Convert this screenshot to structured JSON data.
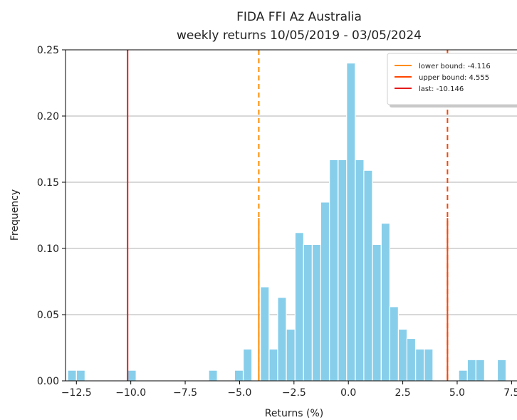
{
  "chart_data": {
    "type": "bar",
    "title": "FIDA FFI Az Australia",
    "subtitle": "weekly returns 10/05/2019 - 03/05/2024",
    "xlabel": "Returns (%)",
    "ylabel": "Frequency",
    "xlim": [
      -13.0,
      7.75
    ],
    "ylim": [
      0.0,
      0.25
    ],
    "xticks": [
      -12.5,
      -10.0,
      -7.5,
      -5.0,
      -2.5,
      0.0,
      2.5,
      5.0,
      7.5
    ],
    "xtick_labels": [
      "−12.5",
      "−10.0",
      "−7.5",
      "−5.0",
      "−2.5",
      "0.0",
      "2.5",
      "5.0",
      "7.5"
    ],
    "yticks": [
      0.0,
      0.05,
      0.1,
      0.15,
      0.2,
      0.25
    ],
    "ytick_labels": [
      "0.00",
      "0.05",
      "0.10",
      "0.15",
      "0.20",
      "0.25"
    ],
    "grid": "horizontal",
    "legend_position": "top-right",
    "bar_color": "#87ceeb",
    "bin_width": 0.396,
    "bins": [
      {
        "x": -12.5,
        "value": 0.008
      },
      {
        "x": -12.9,
        "value": 0.008
      },
      {
        "x": -10.15,
        "value": 0.008
      },
      {
        "x": -6.42,
        "value": 0.008
      },
      {
        "x": -5.23,
        "value": 0.008
      },
      {
        "x": -4.83,
        "value": 0.024
      },
      {
        "x": -4.04,
        "value": 0.071
      },
      {
        "x": -3.64,
        "value": 0.024
      },
      {
        "x": -3.25,
        "value": 0.063
      },
      {
        "x": -2.85,
        "value": 0.039
      },
      {
        "x": -2.45,
        "value": 0.112
      },
      {
        "x": -2.06,
        "value": 0.103
      },
      {
        "x": -1.66,
        "value": 0.103
      },
      {
        "x": -1.27,
        "value": 0.135
      },
      {
        "x": -0.87,
        "value": 0.167
      },
      {
        "x": -0.47,
        "value": 0.167
      },
      {
        "x": -0.08,
        "value": 0.24
      },
      {
        "x": 0.32,
        "value": 0.167
      },
      {
        "x": 0.71,
        "value": 0.159
      },
      {
        "x": 1.11,
        "value": 0.103
      },
      {
        "x": 1.51,
        "value": 0.119
      },
      {
        "x": 1.9,
        "value": 0.056
      },
      {
        "x": 2.3,
        "value": 0.039
      },
      {
        "x": 2.69,
        "value": 0.032
      },
      {
        "x": 3.09,
        "value": 0.024
      },
      {
        "x": 3.49,
        "value": 0.024
      },
      {
        "x": 5.07,
        "value": 0.008
      },
      {
        "x": 5.47,
        "value": 0.016
      },
      {
        "x": 5.86,
        "value": 0.016
      },
      {
        "x": 6.85,
        "value": 0.016
      }
    ],
    "lines": [
      {
        "name": "lower bound: -4.116",
        "x": -4.116,
        "color": "#ff8c00",
        "style": "dashed",
        "solid_top": 0.123
      },
      {
        "name": "upper bound: 4.555",
        "x": 4.555,
        "color": "#ff4500",
        "style": "dashed",
        "solid_top": 0.123
      },
      {
        "name": "last: -10.146",
        "x": -10.146,
        "color": "#e41a1c",
        "style": "solid",
        "solid_top": 0.25
      }
    ]
  }
}
